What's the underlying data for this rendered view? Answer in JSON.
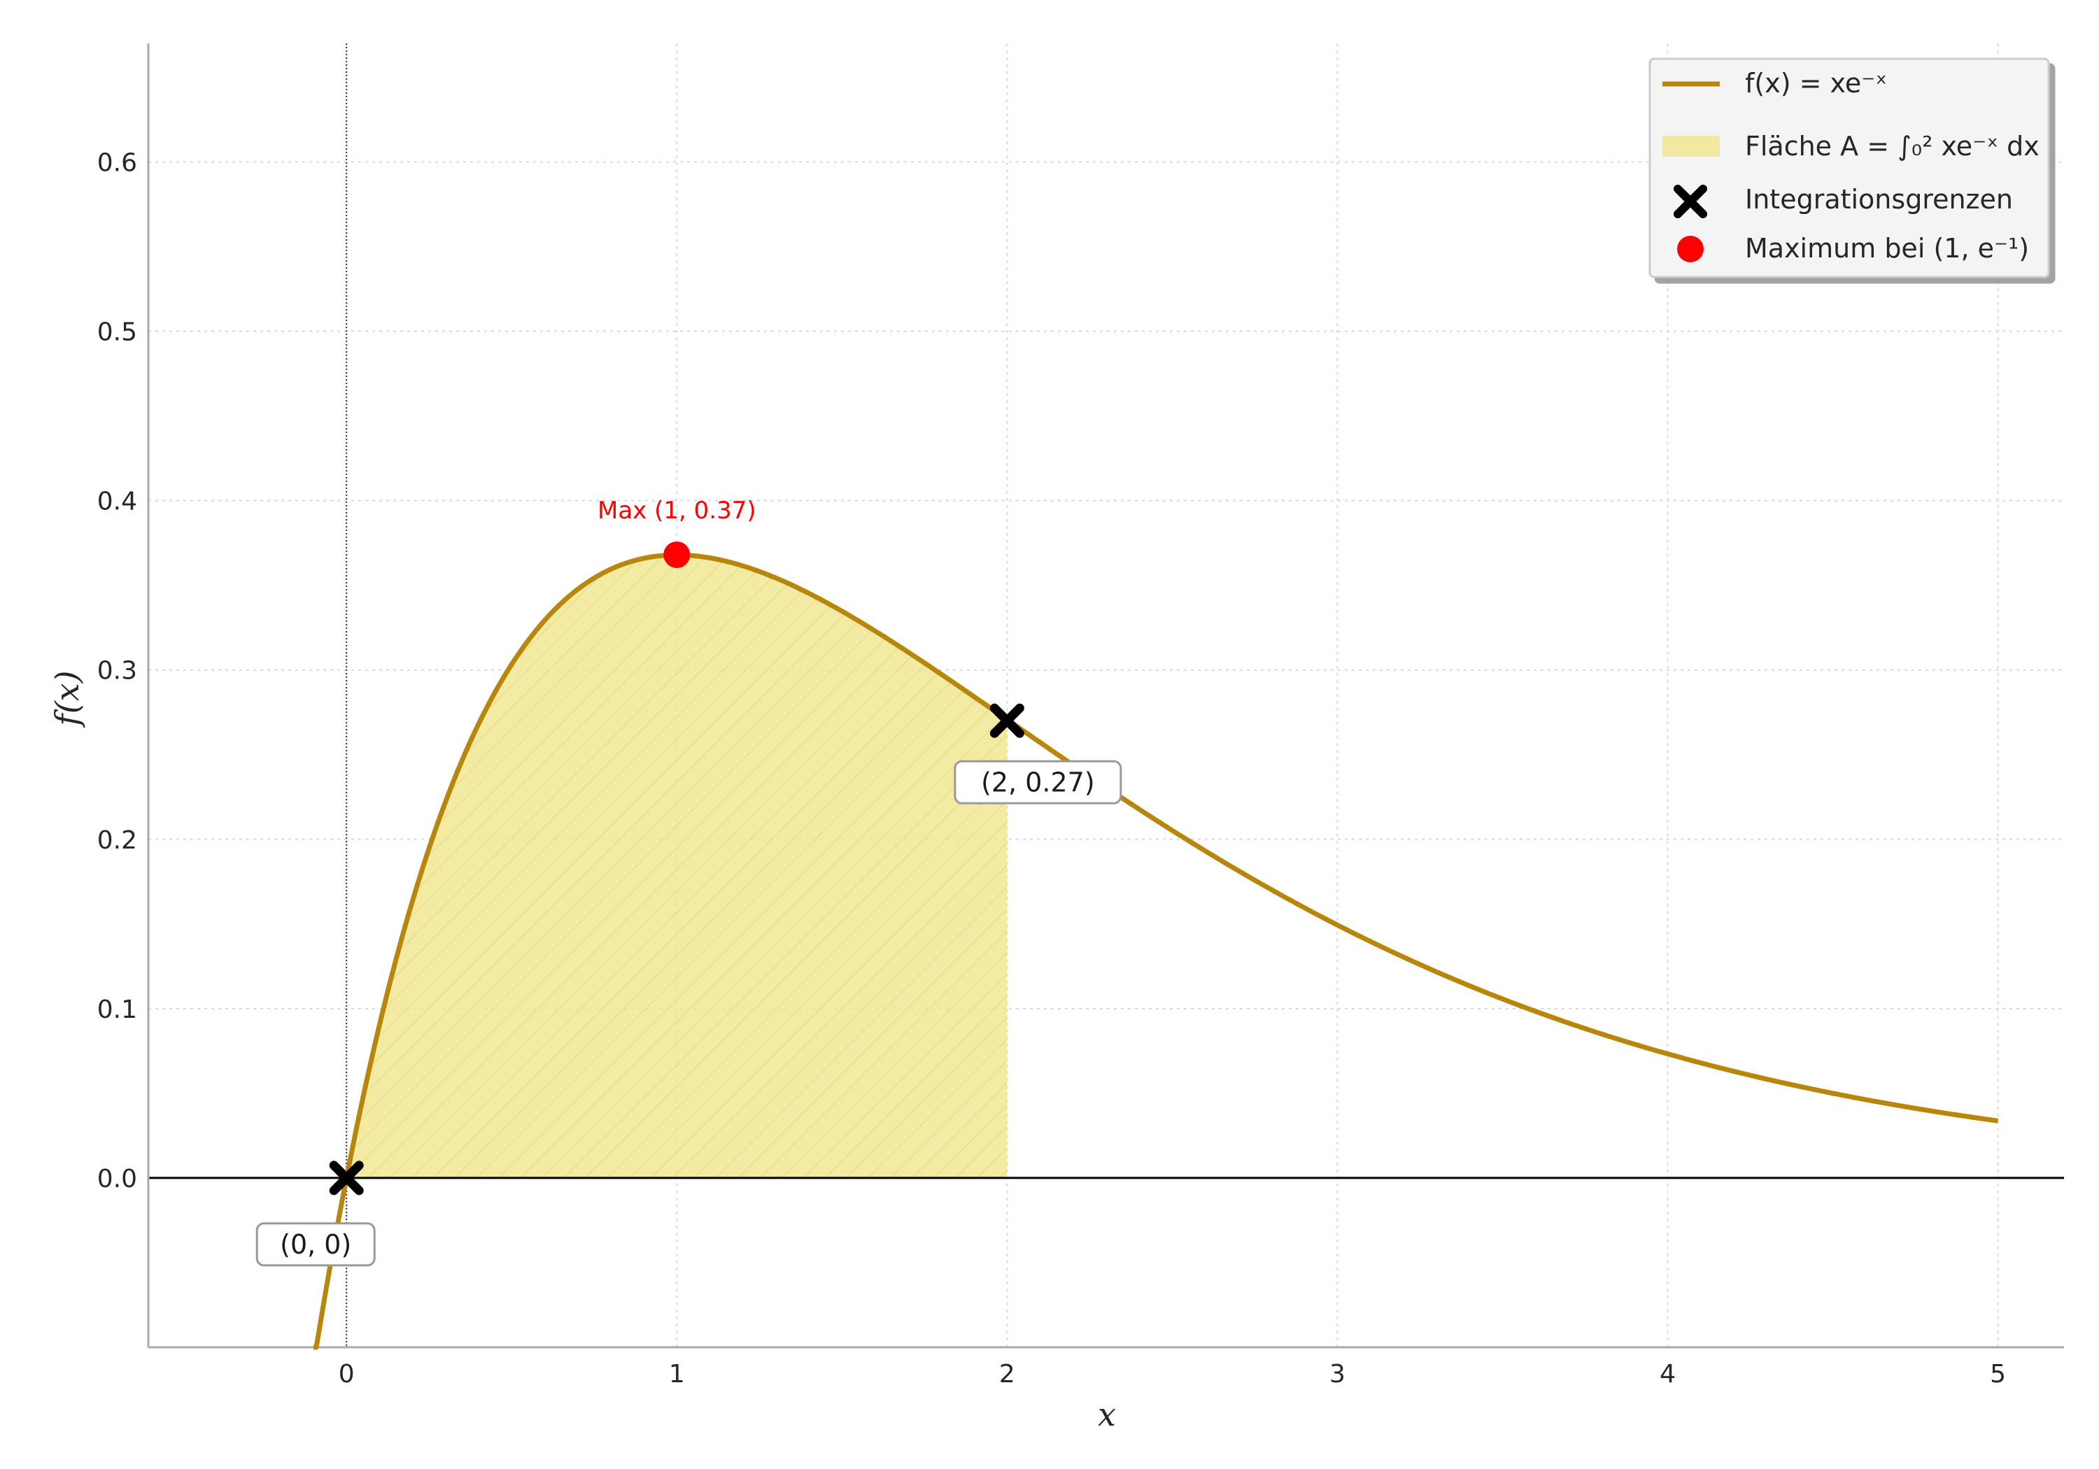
{
  "chart_data": {
    "type": "line",
    "xlabel": "x",
    "ylabel": "f(x)",
    "xlim": [
      -0.6,
      5.2
    ],
    "ylim": [
      -0.1,
      0.67
    ],
    "xticks": [
      0,
      1,
      2,
      3,
      4,
      5
    ],
    "xtick_labels": [
      "0",
      "1",
      "2",
      "3",
      "4",
      "5"
    ],
    "yticks": [
      0.0,
      0.1,
      0.2,
      0.3,
      0.4,
      0.5,
      0.6
    ],
    "ytick_labels": [
      "0.0",
      "0.1",
      "0.2",
      "0.3",
      "0.4",
      "0.5",
      "0.6"
    ],
    "grid": true,
    "legend_position": "top-right",
    "series": [
      {
        "name": "f(x) = xe⁻ˣ",
        "color": "#b8860b",
        "x": [
          -0.1,
          -0.05,
          0,
          0.1,
          0.2,
          0.3,
          0.4,
          0.5,
          0.6,
          0.7,
          0.8,
          0.9,
          1.0,
          1.2,
          1.4,
          1.6,
          1.8,
          2.0,
          2.25,
          2.5,
          2.75,
          3.0,
          3.5,
          4.0,
          4.5,
          5.0
        ],
        "y": [
          -0.111,
          -0.053,
          0,
          0.09,
          0.164,
          0.222,
          0.268,
          0.303,
          0.329,
          0.348,
          0.359,
          0.366,
          0.368,
          0.361,
          0.345,
          0.323,
          0.298,
          0.271,
          0.237,
          0.205,
          0.175,
          0.149,
          0.106,
          0.073,
          0.05,
          0.034
        ]
      }
    ],
    "area": {
      "name": "Fläche A = ∫₀² xe⁻ˣ dx",
      "x_from": 0,
      "x_to": 2,
      "color": "#f0e68c"
    },
    "markers": [
      {
        "name": "Integrationsgrenzen",
        "symbol": "x",
        "color": "#000000",
        "points": [
          [
            0,
            0
          ],
          [
            2,
            0.27
          ]
        ]
      },
      {
        "name": "Maximum bei (1, e⁻¹)",
        "symbol": "circle",
        "color": "#ff0000",
        "points": [
          [
            1,
            0.368
          ]
        ]
      }
    ],
    "annotations": [
      {
        "text": "(0, 0)",
        "x": 0,
        "y": 0
      },
      {
        "text": "(2, 0.27)",
        "x": 2,
        "y": 0.27
      },
      {
        "text": "Max (1, 0.37)",
        "x": 1,
        "y": 0.368
      }
    ]
  }
}
